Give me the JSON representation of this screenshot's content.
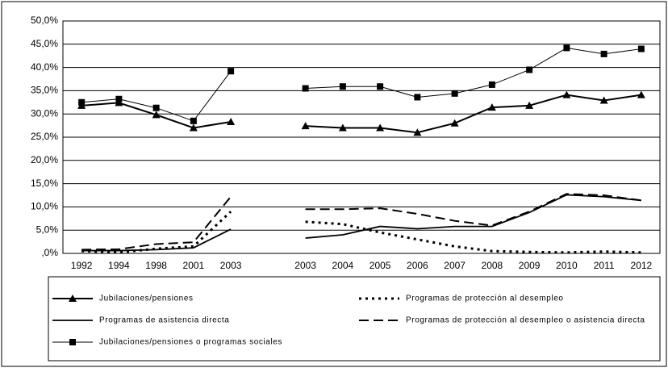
{
  "chart_data": {
    "type": "line",
    "categories": [
      "1992",
      "1994",
      "1998",
      "2001",
      "2003",
      null,
      "2003",
      "2004",
      "2005",
      "2006",
      "2007",
      "2008",
      "2009",
      "2010",
      "2011",
      "2012"
    ],
    "ylim": [
      0,
      50
    ],
    "yticks": [
      {
        "value": 0,
        "label": ",0%"
      },
      {
        "value": 5,
        "label": "5,0%"
      },
      {
        "value": 10,
        "label": "10,0%"
      },
      {
        "value": 15,
        "label": "15,0%"
      },
      {
        "value": 20,
        "label": "20,0%"
      },
      {
        "value": 25,
        "label": "25,0%"
      },
      {
        "value": 30,
        "label": "30,0%"
      },
      {
        "value": 35,
        "label": "35,0%"
      },
      {
        "value": 40,
        "label": "40,0%"
      },
      {
        "value": 45,
        "label": "45,0%"
      },
      {
        "value": 50,
        "label": "50,0%"
      }
    ],
    "grid": true,
    "series": [
      {
        "name": "Jubilaciones/pensiones",
        "color": "#000000",
        "dash": "solid",
        "width": 2,
        "marker": "triangle",
        "values": [
          31.8,
          32.4,
          29.8,
          27.0,
          28.3,
          null,
          27.4,
          27.0,
          27.0,
          26.0,
          28.0,
          31.4,
          31.8,
          34.1,
          32.9,
          34.1
        ]
      },
      {
        "name": "Programas de protección al desempleo",
        "color": "#000000",
        "dash": "dotted",
        "width": 3,
        "marker": "none",
        "values": [
          0.5,
          0.2,
          1.0,
          1.5,
          9.0,
          null,
          6.8,
          6.3,
          4.5,
          3.0,
          1.5,
          0.5,
          0.3,
          0.2,
          0.4,
          0.2
        ]
      },
      {
        "name": "Programas de asistencia directa",
        "color": "#000000",
        "dash": "solid",
        "width": 1.8,
        "marker": "none",
        "values": [
          0.6,
          0.6,
          0.8,
          1.2,
          5.2,
          null,
          3.3,
          4.0,
          5.8,
          5.3,
          5.8,
          5.8,
          8.8,
          12.6,
          12.2,
          11.4
        ]
      },
      {
        "name": "Programas de protección al desempleo o asistencia directa",
        "color": "#000000",
        "dash": "dashed",
        "width": 2,
        "marker": "none",
        "values": [
          0.8,
          0.9,
          2.0,
          2.4,
          12.2,
          null,
          9.5,
          9.5,
          9.7,
          8.5,
          7.0,
          6.0,
          9.0,
          12.8,
          12.5,
          11.4
        ]
      },
      {
        "name": "Jubilaciones/pensiones o programas sociales",
        "color": "#000000",
        "dash": "solid",
        "width": 1,
        "marker": "square",
        "values": [
          32.5,
          33.2,
          31.3,
          28.5,
          39.2,
          null,
          35.5,
          35.9,
          35.9,
          33.6,
          34.4,
          36.3,
          39.5,
          44.2,
          42.9,
          44.0
        ]
      }
    ]
  }
}
